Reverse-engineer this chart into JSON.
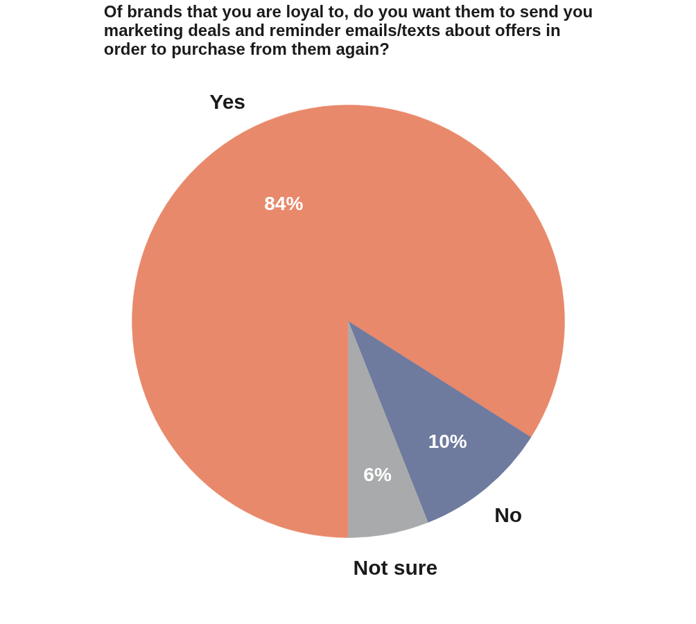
{
  "chart_data": {
    "type": "pie",
    "title": "Of brands that you are loyal to, do you want them to send you marketing deals and reminder emails/texts about offers in order to purchase from them again?",
    "categories": [
      "Yes",
      "No",
      "Not sure"
    ],
    "values": [
      84,
      10,
      6
    ],
    "colors": [
      "#e8896b",
      "#6e7a9e",
      "#a9aaac"
    ],
    "value_labels": [
      "84%",
      "10%",
      "6%"
    ]
  }
}
